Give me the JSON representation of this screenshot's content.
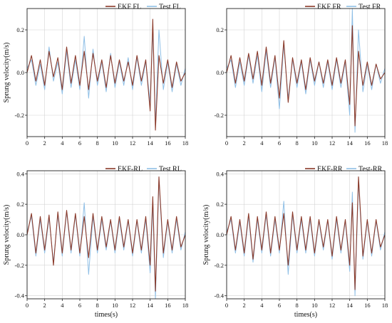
{
  "colors": {
    "ekf": "#8b3a2a",
    "test": "#8fbfe6",
    "grid": "#d4d4d4",
    "axis": "#222222"
  },
  "chart_data": [
    {
      "type": "line",
      "xlabel": "",
      "ylabel": "Sprung velocity(m/s)",
      "xlim": [
        0,
        18
      ],
      "ylim": [
        -0.3,
        0.3
      ],
      "xticks": [
        "0",
        "2",
        "4",
        "6",
        "8",
        "10",
        "12",
        "14",
        "16",
        "18"
      ],
      "yticks": [
        "0.2",
        "0.0",
        "-0.2"
      ],
      "yticks_values": [
        0.2,
        0.0,
        -0.2
      ],
      "grid": true,
      "legend_position": "top-right",
      "series": [
        {
          "name": "EKF FL",
          "x": [
            0,
            0.5,
            1,
            1.5,
            2,
            2.5,
            3,
            3.5,
            4,
            4.5,
            5,
            5.5,
            6,
            6.5,
            7,
            7.5,
            8,
            8.5,
            9,
            9.5,
            10,
            10.5,
            11,
            11.5,
            12,
            12.5,
            13,
            13.5,
            14,
            14.3,
            14.6,
            15,
            15.5,
            16,
            16.5,
            17,
            17.5,
            18
          ],
          "y": [
            0.0,
            0.08,
            -0.04,
            0.06,
            -0.06,
            0.1,
            -0.02,
            0.07,
            -0.08,
            0.12,
            -0.05,
            0.08,
            -0.06,
            0.1,
            -0.08,
            0.09,
            -0.04,
            0.06,
            -0.07,
            0.08,
            -0.05,
            0.06,
            -0.04,
            0.05,
            -0.06,
            0.08,
            -0.04,
            0.06,
            -0.18,
            0.25,
            -0.27,
            0.08,
            -0.05,
            0.06,
            -0.07,
            0.05,
            -0.04,
            0.0
          ]
        },
        {
          "name": "Test FL",
          "x": [
            0,
            0.5,
            1,
            1.5,
            2,
            2.5,
            3,
            3.5,
            4,
            4.5,
            5,
            5.5,
            6,
            6.5,
            7,
            7.5,
            8,
            8.5,
            9,
            9.5,
            10,
            10.5,
            11,
            11.5,
            12,
            12.5,
            13,
            13.5,
            14,
            14.3,
            14.6,
            15,
            15.5,
            16,
            16.5,
            17,
            17.5,
            18
          ],
          "y": [
            0.02,
            0.06,
            -0.06,
            0.04,
            -0.08,
            0.12,
            -0.04,
            0.05,
            -0.1,
            0.1,
            -0.07,
            0.06,
            -0.08,
            0.17,
            -0.12,
            0.11,
            -0.06,
            0.05,
            -0.09,
            0.09,
            -0.07,
            0.05,
            -0.06,
            0.07,
            -0.08,
            0.07,
            -0.06,
            0.05,
            -0.14,
            0.2,
            -0.24,
            0.2,
            -0.08,
            0.05,
            -0.09,
            0.04,
            -0.06,
            0.02
          ]
        }
      ]
    },
    {
      "type": "line",
      "xlabel": "",
      "ylabel": "",
      "xlim": [
        0,
        18
      ],
      "ylim": [
        -0.3,
        0.3
      ],
      "xticks": [
        "0",
        "2",
        "4",
        "6",
        "8",
        "10",
        "12",
        "14",
        "16",
        "18"
      ],
      "yticks": [
        "0.2",
        "0.0",
        "-0.2"
      ],
      "yticks_values": [
        0.2,
        0.0,
        -0.2
      ],
      "grid": true,
      "legend_position": "top-right",
      "series": [
        {
          "name": "EKF FR",
          "x": [
            0,
            0.5,
            1,
            1.5,
            2,
            2.5,
            3,
            3.5,
            4,
            4.5,
            5,
            5.5,
            6,
            6.5,
            7,
            7.5,
            8,
            8.5,
            9,
            9.5,
            10,
            10.5,
            11,
            11.5,
            12,
            12.5,
            13,
            13.5,
            14,
            14.3,
            14.6,
            15,
            15.5,
            16,
            16.5,
            17,
            17.5,
            18
          ],
          "y": [
            0.0,
            0.08,
            -0.05,
            0.07,
            -0.04,
            0.09,
            -0.03,
            0.1,
            -0.06,
            0.12,
            -0.05,
            0.08,
            -0.12,
            0.15,
            -0.14,
            0.07,
            -0.05,
            0.06,
            -0.08,
            0.07,
            -0.04,
            0.05,
            -0.05,
            0.06,
            -0.06,
            0.07,
            -0.05,
            0.06,
            -0.15,
            0.22,
            -0.25,
            0.1,
            -0.06,
            0.05,
            -0.06,
            0.04,
            -0.03,
            0.0
          ]
        },
        {
          "name": "Test FR",
          "x": [
            0,
            0.5,
            1,
            1.5,
            2,
            2.5,
            3,
            3.5,
            4,
            4.5,
            5,
            5.5,
            6,
            6.5,
            7,
            7.5,
            8,
            8.5,
            9,
            9.5,
            10,
            10.5,
            11,
            11.5,
            12,
            12.5,
            13,
            13.5,
            14,
            14.3,
            14.6,
            15,
            15.5,
            16,
            16.5,
            17,
            17.5,
            18
          ],
          "y": [
            0.02,
            0.06,
            -0.07,
            0.05,
            -0.06,
            0.08,
            -0.05,
            0.08,
            -0.09,
            0.1,
            -0.07,
            0.07,
            -0.17,
            0.13,
            -0.12,
            0.06,
            -0.07,
            0.05,
            -0.1,
            0.06,
            -0.06,
            0.05,
            -0.07,
            0.05,
            -0.08,
            0.06,
            -0.07,
            0.05,
            -0.2,
            0.3,
            -0.28,
            0.2,
            -0.09,
            0.04,
            -0.08,
            0.04,
            -0.05,
            0.02
          ]
        }
      ]
    },
    {
      "type": "line",
      "xlabel": "times(s)",
      "ylabel": "Sprung velocity(m/s)",
      "xlim": [
        0,
        18
      ],
      "ylim": [
        -0.42,
        0.42
      ],
      "xticks": [
        "0",
        "2",
        "4",
        "6",
        "8",
        "10",
        "12",
        "14",
        "16",
        "18"
      ],
      "yticks": [
        "0.4",
        "0.2",
        "0.0",
        "-0.2",
        "-0.4"
      ],
      "yticks_values": [
        0.4,
        0.2,
        0.0,
        -0.2,
        -0.4
      ],
      "grid": true,
      "legend_position": "top-right",
      "series": [
        {
          "name": "EKF-RL",
          "x": [
            0,
            0.5,
            1,
            1.5,
            2,
            2.5,
            3,
            3.5,
            4,
            4.5,
            5,
            5.5,
            6,
            6.5,
            7,
            7.5,
            8,
            8.5,
            9,
            9.5,
            10,
            10.5,
            11,
            11.5,
            12,
            12.5,
            13,
            13.5,
            14,
            14.3,
            14.6,
            15,
            15.5,
            16,
            16.5,
            17,
            17.5,
            18
          ],
          "y": [
            0.0,
            0.14,
            -0.12,
            0.12,
            -0.1,
            0.13,
            -0.2,
            0.15,
            -0.12,
            0.16,
            -0.1,
            0.14,
            -0.12,
            0.12,
            -0.15,
            0.14,
            -0.1,
            0.12,
            -0.08,
            0.1,
            -0.1,
            0.12,
            -0.08,
            0.1,
            -0.12,
            0.1,
            -0.1,
            0.12,
            -0.2,
            0.25,
            -0.37,
            0.38,
            -0.12,
            0.1,
            -0.1,
            0.12,
            -0.08,
            0.0
          ]
        },
        {
          "name": "Test RL",
          "x": [
            0,
            0.5,
            1,
            1.5,
            2,
            2.5,
            3,
            3.5,
            4,
            4.5,
            5,
            5.5,
            6,
            6.5,
            7,
            7.5,
            8,
            8.5,
            9,
            9.5,
            10,
            10.5,
            11,
            11.5,
            12,
            12.5,
            13,
            13.5,
            14,
            14.3,
            14.6,
            15,
            15.5,
            16,
            16.5,
            17,
            17.5,
            18
          ],
          "y": [
            0.02,
            0.12,
            -0.14,
            0.1,
            -0.12,
            0.11,
            -0.18,
            0.13,
            -0.14,
            0.15,
            -0.12,
            0.13,
            -0.14,
            0.21,
            -0.26,
            0.12,
            -0.12,
            0.1,
            -0.1,
            0.09,
            -0.12,
            0.1,
            -0.1,
            0.09,
            -0.14,
            0.09,
            -0.12,
            0.1,
            -0.25,
            0.2,
            -0.42,
            0.36,
            -0.15,
            0.09,
            -0.12,
            0.1,
            -0.1,
            0.02
          ]
        }
      ]
    },
    {
      "type": "line",
      "xlabel": "times(s)",
      "ylabel": "Sprung velocity(m/s)",
      "xlim": [
        0,
        18
      ],
      "ylim": [
        -0.42,
        0.42
      ],
      "xticks": [
        "0",
        "2",
        "4",
        "6",
        "8",
        "10",
        "12",
        "14",
        "16",
        "18"
      ],
      "yticks": [
        "0.4",
        "0.2",
        "0.0",
        "-0.2",
        "-0.4"
      ],
      "yticks_values": [
        0.4,
        0.2,
        0.0,
        -0.2,
        -0.4
      ],
      "grid": true,
      "legend_position": "top-right",
      "series": [
        {
          "name": "EKF-RR",
          "x": [
            0,
            0.5,
            1,
            1.5,
            2,
            2.5,
            3,
            3.5,
            4,
            4.5,
            5,
            5.5,
            6,
            6.5,
            7,
            7.5,
            8,
            8.5,
            9,
            9.5,
            10,
            10.5,
            11,
            11.5,
            12,
            12.5,
            13,
            13.5,
            14,
            14.3,
            14.6,
            15,
            15.5,
            16,
            16.5,
            17,
            17.5,
            18
          ],
          "y": [
            0.0,
            0.12,
            -0.1,
            0.1,
            -0.12,
            0.14,
            -0.16,
            0.12,
            -0.1,
            0.15,
            -0.12,
            0.12,
            -0.1,
            0.14,
            -0.2,
            0.15,
            -0.1,
            0.12,
            -0.1,
            0.12,
            -0.12,
            0.1,
            -0.08,
            0.1,
            -0.14,
            0.12,
            -0.1,
            0.1,
            -0.2,
            0.21,
            -0.36,
            0.38,
            -0.14,
            0.1,
            -0.12,
            0.1,
            -0.08,
            0.0
          ]
        },
        {
          "name": "Test-RR",
          "x": [
            0,
            0.5,
            1,
            1.5,
            2,
            2.5,
            3,
            3.5,
            4,
            4.5,
            5,
            5.5,
            6,
            6.5,
            7,
            7.5,
            8,
            8.5,
            9,
            9.5,
            10,
            10.5,
            11,
            11.5,
            12,
            12.5,
            13,
            13.5,
            14,
            14.3,
            14.6,
            15,
            15.5,
            16,
            16.5,
            17,
            17.5,
            18
          ],
          "y": [
            0.02,
            0.1,
            -0.12,
            0.08,
            -0.14,
            0.12,
            -0.18,
            0.1,
            -0.12,
            0.13,
            -0.14,
            0.1,
            -0.12,
            0.22,
            -0.26,
            0.13,
            -0.12,
            0.1,
            -0.12,
            0.1,
            -0.14,
            0.09,
            -0.1,
            0.09,
            -0.16,
            0.1,
            -0.12,
            0.09,
            -0.24,
            0.28,
            -0.4,
            0.35,
            -0.16,
            0.09,
            -0.14,
            0.09,
            -0.1,
            0.02
          ]
        }
      ]
    }
  ]
}
